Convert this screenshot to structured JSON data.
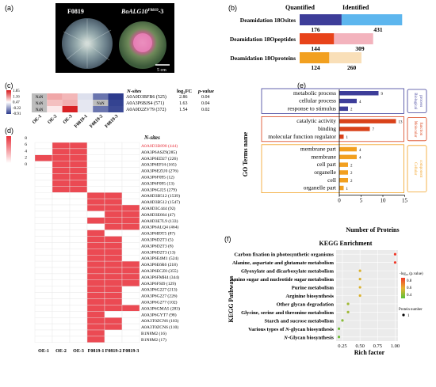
{
  "panels": {
    "a": {
      "letter": "(a)",
      "left_label": "F0819",
      "right_label": "BoALG10",
      "right_label_sup": "F0819",
      "right_label_suffix": "-3",
      "scale_bar": "5 cm"
    },
    "b": {
      "letter": "(b)",
      "quantified_header": "Quantified",
      "identified_header": "Identified",
      "colors": {
        "sites_q": "#3d3d99",
        "sites_i": "#5db6ee",
        "peptides_q": "#e8431a",
        "peptides_i": "#f3b3bd",
        "proteins_q": "#f2a020",
        "proteins_i": "#f9dfb8"
      }
    },
    "c": {
      "letter": "(c)",
      "legend_ticks": [
        "1.85",
        "1.16",
        "0.47",
        "-0.22",
        "-0.91"
      ],
      "nan_label": "NaN",
      "columns": [
        "OE-1",
        "OE-2",
        "OE-3",
        "F0819-1",
        "F0819-2",
        "F0819-3"
      ],
      "headers": {
        "nsites": "N-sites",
        "log2fc": "log",
        "log2fc_sub": "2",
        "log2fc_suffix": "FC",
        "pvalue": "p-value"
      },
      "rows": [
        {
          "label": "A0A0D3BFB6 (525)",
          "log2fc": "2.86",
          "pvalue": "0.04"
        },
        {
          "label": "A0A3P6BJS4 (571)",
          "log2fc": "1.63",
          "pvalue": "0.04"
        },
        {
          "label": "A0A0D2ZV79 (372)",
          "log2fc": "1.54",
          "pvalue": "0.02"
        }
      ]
    },
    "d": {
      "letter": "(d)",
      "header": "N-sites",
      "legend_ticks": [
        "8",
        "6",
        "4",
        "2",
        "0"
      ],
      "columns": [
        "OE-1",
        "OE-2",
        "OE-3",
        "F0819-1",
        "F0819-2",
        "F0819-3"
      ],
      "rows": [
        "A0A0D3B898 (444)",
        "A0A3P6ASZ9(285)",
        "A0A3P6ED27 (226)",
        "A0A3P6EFJ4 (165)",
        "A0A3P6EZU0 (276)",
        "A0A3P6F095 (12)",
        "A0A3P6F095 (13)",
        "A0A3P6GJ25 (279)",
        "A0A0D3B512 (1539)",
        "A0A0D3B512 (1547)",
        "A0A0D3C444 (92)",
        "A0A0D3E664 (47)",
        "A0A0D3E7L9 (133)",
        "A0A3P6ALQ4 (464)",
        "A0A3P6B9T5 (87)",
        "A0A3P6D2T3 (5)",
        "A0A3P6D2T3 (8)",
        "A0A3P6D2T3 (13)",
        "A0A3P6E4M1 (524)",
        "A0A3P6E6R6 (218)",
        "A0A3P6ECZ0 (355)",
        "A0A3P6FMH4 (344)",
        "A0A3P6FSI9 (129)",
        "A0A3P6G227 (213)",
        "A0A3P6G227 (226)",
        "A0A3P6G277 (102)",
        "A0A3P6GMA5 (283)",
        "A0A3P6GYT7 (98)",
        "A0A3T0ZCN6 (103)",
        "A0A3T0ZCN6 (110)",
        "B1N8M2 (16)",
        "B1N8M2 (17)"
      ],
      "highlight_color": "#e8303a"
    },
    "e": {
      "letter": "(e)",
      "ylabel": "GO Terms name",
      "xlabel": "Number of Proteins",
      "categories": [
        {
          "name": "Biological process",
          "line1": "Biological",
          "line2": "process",
          "color": "#3d3d99"
        },
        {
          "name": "Molecular function",
          "line1": "Molecular",
          "line2": "function",
          "color": "#d9421a"
        },
        {
          "name": "Cellular component",
          "line1": "Cellular",
          "line2": "component",
          "color": "#f2a020"
        }
      ]
    },
    "f": {
      "letter": "(f)",
      "title": "KEGG Enrichment",
      "ylabel": "KEGG Pathways",
      "xlabel": "Rich factor",
      "legend_title": "-log",
      "legend_title_sub": "10",
      "legend_title_suffix": " (p.value)",
      "legend_ticks": [
        "0.8",
        "0.6",
        "0.4"
      ],
      "size_legend_title": "Protein number",
      "size_legend_value": "1"
    }
  },
  "chart_data": [
    {
      "type": "bar",
      "panel": "b",
      "orientation": "horizontal-stacked",
      "categories": [
        "Deamidation 18Osites",
        "Deamidation 18Opeptides",
        "Deamidation 18Oproteins"
      ],
      "series": [
        {
          "name": "Quantified",
          "values": [
            176,
            144,
            124
          ]
        },
        {
          "name": "Identified",
          "values": [
            431,
            309,
            260
          ]
        }
      ]
    },
    {
      "type": "heatmap",
      "panel": "c",
      "x": [
        "OE-1",
        "OE-2",
        "OE-3",
        "F0819-1",
        "F0819-2",
        "F0819-3"
      ],
      "y": [
        "A0A0D3BFB6 (525)",
        "A0A3P6BJS4 (571)",
        "A0A0D2ZV79 (372)"
      ],
      "zlim": [
        -0.91,
        1.85
      ],
      "values": [
        [
          null,
          1.0,
          0.9,
          0.25,
          -0.5,
          -0.9
        ],
        [
          null,
          0.85,
          0.95,
          0.3,
          null,
          -0.85
        ],
        [
          null,
          0.6,
          1.8,
          0.3,
          -0.5,
          -0.8
        ]
      ]
    },
    {
      "type": "heatmap",
      "panel": "d",
      "x": [
        "OE-1",
        "OE-2",
        "OE-3",
        "F0819-1",
        "F0819-2",
        "F0819-3"
      ],
      "zlim": [
        0,
        8
      ],
      "values": [
        [
          0,
          7,
          7,
          0,
          0,
          0
        ],
        [
          0,
          7,
          7,
          0,
          0,
          0
        ],
        [
          7,
          7,
          7,
          0,
          0,
          0
        ],
        [
          0,
          7,
          7,
          0,
          0,
          0
        ],
        [
          0,
          7,
          7,
          0,
          0,
          0
        ],
        [
          0,
          7,
          7,
          0,
          0,
          0
        ],
        [
          0,
          7,
          7,
          0,
          0,
          0
        ],
        [
          0,
          7,
          7,
          0,
          0,
          0
        ],
        [
          0,
          0,
          0,
          7,
          7,
          0
        ],
        [
          0,
          0,
          0,
          7,
          7,
          0
        ],
        [
          0,
          0,
          0,
          7,
          7,
          7
        ],
        [
          0,
          0,
          0,
          0,
          7,
          7
        ],
        [
          0,
          0,
          0,
          7,
          7,
          7
        ],
        [
          0,
          0,
          0,
          0,
          7,
          7
        ],
        [
          0,
          0,
          0,
          7,
          0,
          0
        ],
        [
          0,
          0,
          0,
          7,
          7,
          0
        ],
        [
          0,
          0,
          0,
          7,
          7,
          0
        ],
        [
          0,
          0,
          0,
          7,
          7,
          0
        ],
        [
          0,
          0,
          0,
          7,
          7,
          0
        ],
        [
          0,
          0,
          0,
          7,
          7,
          7
        ],
        [
          0,
          0,
          0,
          7,
          7,
          7
        ],
        [
          0,
          0,
          0,
          7,
          7,
          7
        ],
        [
          0,
          0,
          0,
          7,
          7,
          7
        ],
        [
          0,
          0,
          0,
          7,
          7,
          0
        ],
        [
          0,
          0,
          0,
          7,
          7,
          0
        ],
        [
          0,
          0,
          0,
          7,
          7,
          0
        ],
        [
          0,
          0,
          0,
          7,
          7,
          7
        ],
        [
          0,
          0,
          0,
          7,
          0,
          0
        ],
        [
          0,
          0,
          0,
          7,
          7,
          0
        ],
        [
          0,
          0,
          0,
          7,
          7,
          0
        ],
        [
          0,
          0,
          0,
          7,
          0,
          0
        ],
        [
          0,
          0,
          0,
          7,
          0,
          0
        ]
      ]
    },
    {
      "type": "bar",
      "panel": "e",
      "orientation": "horizontal",
      "xlabel": "Number of Proteins",
      "ylabel": "GO Terms name",
      "xlim": [
        0,
        15
      ],
      "xticks": [
        0,
        5,
        10,
        15
      ],
      "groups": [
        {
          "name": "Biological process",
          "categories": [
            "metabolic process",
            "cellular process",
            "response to stimulus"
          ],
          "values": [
            9,
            4,
            2
          ]
        },
        {
          "name": "Molecular function",
          "categories": [
            "catalytic activity",
            "binding",
            "molecular function regulator"
          ],
          "values": [
            13,
            7,
            1
          ]
        },
        {
          "name": "Cellular component",
          "categories": [
            "membrane part",
            "membrane",
            "cell part",
            "organelle",
            "cell",
            "organelle part"
          ],
          "values": [
            4,
            4,
            2,
            2,
            2,
            1
          ]
        }
      ]
    },
    {
      "type": "scatter",
      "panel": "f",
      "title": "KEGG Enrichment",
      "xlabel": "Rich factor",
      "ylabel": "KEGG Pathways",
      "xlim": [
        0.16,
        1.04
      ],
      "xticks": [
        "0.25",
        "0.50",
        "0.75",
        "1.00"
      ],
      "categories": [
        "Carbon fixation in photosynthetic organisms",
        "Alanine, aspartate and glutamate metabolism",
        "Glyoxylate and dicarboxylate metabolism",
        "Amino sugar and nucleotide sugar metabolism",
        "Purine metabolism",
        "Arginine biosynthesis",
        "Other glycan degradation",
        "Glycine, serine and threonine metabolism",
        "Starch and sucrose metabolism",
        "Various types of N-glycan biosynthesis",
        "N-Glycan biosynthesis"
      ],
      "x": [
        1.0,
        1.0,
        0.5,
        0.5,
        0.5,
        0.5,
        0.33,
        0.33,
        0.25,
        0.2,
        0.2
      ],
      "neg_log10_p": [
        0.95,
        0.95,
        0.62,
        0.62,
        0.62,
        0.62,
        0.5,
        0.5,
        0.45,
        0.4,
        0.4
      ]
    }
  ]
}
